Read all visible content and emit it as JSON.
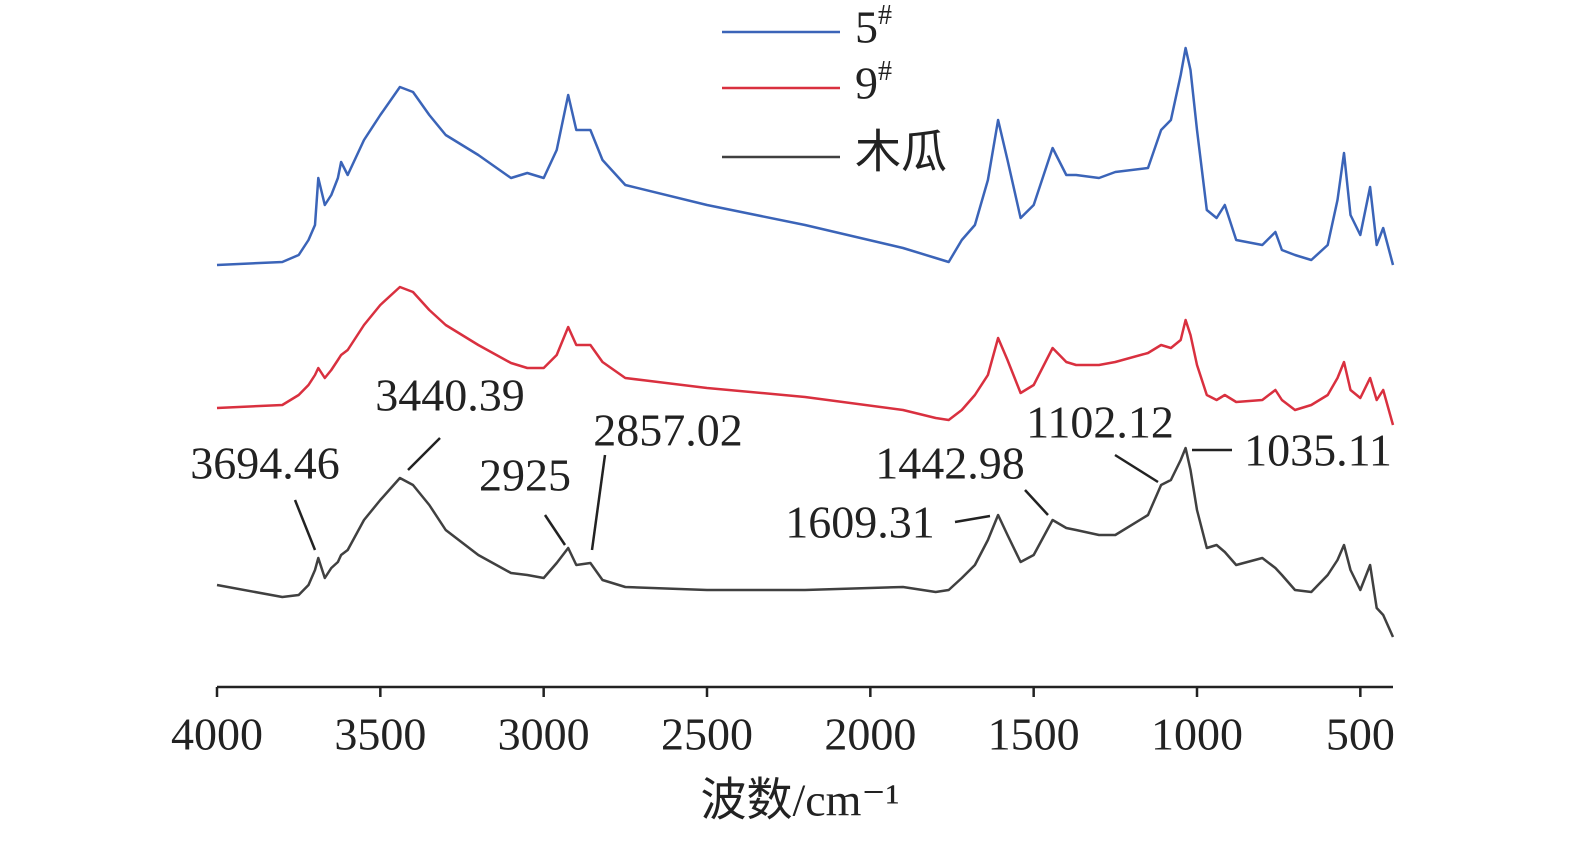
{
  "chart_data": {
    "type": "line",
    "xlabel": "波数/cm⁻¹",
    "x": [
      4000,
      3800,
      3750,
      3720,
      3700,
      3690,
      3670,
      3650,
      3630,
      3620,
      3600,
      3550,
      3500,
      3440,
      3400,
      3350,
      3300,
      3200,
      3100,
      3050,
      3000,
      2960,
      2925,
      2900,
      2857,
      2820,
      2750,
      2500,
      2200,
      1900,
      1800,
      1760,
      1720,
      1680,
      1640,
      1609,
      1580,
      1540,
      1500,
      1442,
      1400,
      1370,
      1300,
      1250,
      1150,
      1110,
      1080,
      1050,
      1035,
      1020,
      1000,
      970,
      940,
      915,
      880,
      800,
      760,
      740,
      700,
      650,
      600,
      570,
      550,
      530,
      500,
      470,
      450,
      430,
      400
    ],
    "xlim": [
      4000,
      400
    ],
    "xticks": [
      4000,
      3500,
      3000,
      2500,
      2000,
      1500,
      1000,
      500
    ],
    "ylim": [
      0,
      647
    ],
    "series": [
      {
        "name": "5#",
        "color": "#3b64b8",
        "values": [
          422,
          425,
          432,
          447,
          462,
          509,
          482,
          492,
          509,
          525,
          512,
          547,
          572,
          600,
          595,
          572,
          552,
          532,
          509,
          514,
          509,
          537,
          592,
          557,
          557,
          527,
          502,
          482,
          462,
          439,
          429,
          425,
          447,
          462,
          507,
          567,
          527,
          469,
          482,
          539,
          512,
          512,
          509,
          515,
          519,
          557,
          567,
          612,
          639,
          617,
          557,
          477,
          469,
          482,
          447,
          442,
          455,
          437,
          432,
          427,
          442,
          487,
          534,
          472,
          452,
          500,
          442,
          459,
          422
        ]
      },
      {
        "name": "9#",
        "color": "#d9303f",
        "values": [
          279,
          282,
          292,
          302,
          312,
          319,
          309,
          317,
          327,
          332,
          337,
          362,
          382,
          400,
          395,
          377,
          362,
          342,
          324,
          319,
          319,
          332,
          360,
          342,
          342,
          325,
          309,
          299,
          290,
          277,
          269,
          267,
          277,
          292,
          312,
          349,
          327,
          294,
          302,
          339,
          325,
          322,
          322,
          325,
          334,
          342,
          339,
          347,
          367,
          352,
          322,
          292,
          287,
          292,
          285,
          287,
          297,
          287,
          277,
          282,
          292,
          309,
          325,
          297,
          289,
          309,
          287,
          297,
          262
        ]
      },
      {
        "name": "木瓜",
        "color": "#404040",
        "values": [
          102,
          90,
          92,
          102,
          117,
          129,
          109,
          119,
          125,
          132,
          137,
          167,
          187,
          209,
          202,
          182,
          157,
          132,
          114,
          112,
          109,
          124,
          139,
          122,
          124,
          107,
          100,
          97,
          97,
          100,
          95,
          97,
          109,
          122,
          147,
          172,
          152,
          125,
          132,
          167,
          159,
          157,
          152,
          152,
          172,
          202,
          207,
          227,
          239,
          217,
          177,
          139,
          142,
          135,
          122,
          129,
          119,
          112,
          97,
          95,
          112,
          127,
          142,
          117,
          97,
          122,
          79,
          72,
          50
        ]
      }
    ],
    "annotations": [
      "3694.46",
      "3440.39",
      "2925",
      "2857.02",
      "1609.31",
      "1442.98",
      "1102.12",
      "1035.11"
    ]
  }
}
